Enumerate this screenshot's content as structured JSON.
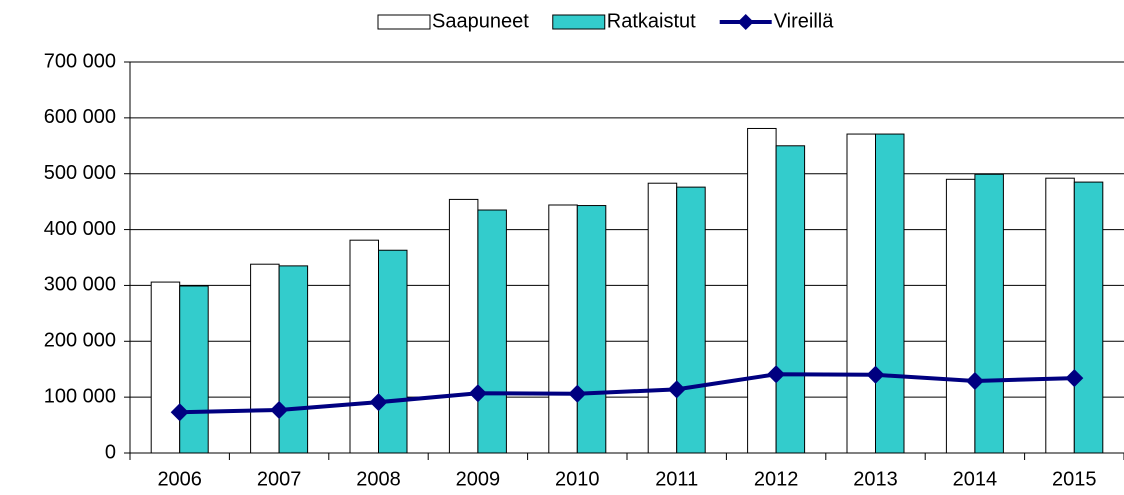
{
  "chart_data": {
    "type": "bar_line",
    "categories": [
      "2006",
      "2007",
      "2008",
      "2009",
      "2010",
      "2011",
      "2012",
      "2013",
      "2014",
      "2015"
    ],
    "series": [
      {
        "name": "Saapuneet",
        "color": "#ffffff",
        "type": "bar",
        "values": [
          306000,
          338000,
          381000,
          454000,
          444000,
          483000,
          581000,
          571000,
          490000,
          492000
        ]
      },
      {
        "name": "Ratkaistut",
        "color": "#33cccc",
        "type": "bar",
        "values": [
          299000,
          335000,
          363000,
          435000,
          443000,
          476000,
          550000,
          571000,
          499000,
          485000
        ]
      },
      {
        "name": "Vireillä",
        "color": "#000080",
        "type": "line",
        "values": [
          73000,
          77000,
          91000,
          107000,
          106000,
          114000,
          141000,
          140000,
          129000,
          134000
        ]
      }
    ],
    "ylim": [
      0,
      700000
    ],
    "yticks": [
      0,
      {
        "value": 100000,
        "label": "100 000"
      },
      {
        "value": 200000,
        "label": "200 000"
      },
      {
        "value": 300000,
        "label": "300 000"
      },
      {
        "value": 400000,
        "label": "400 000"
      },
      {
        "value": 500000,
        "label": "500 000"
      },
      {
        "value": 600000,
        "label": "600 000"
      },
      {
        "value": 700000,
        "label": "700 000"
      }
    ],
    "grid": true,
    "legend": "top"
  }
}
